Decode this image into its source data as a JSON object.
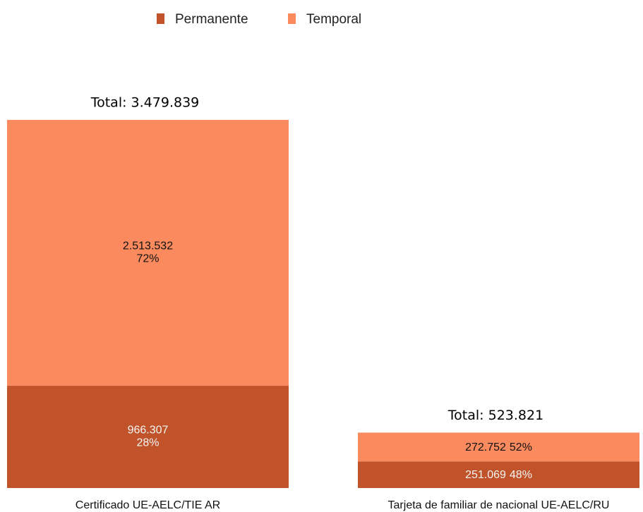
{
  "chart_data": {
    "type": "stacked_bar",
    "categories": [
      "Certificado UE-AELC/TIE AR",
      "Tarjeta de familiar de nacional UE-AELC/RU"
    ],
    "series": [
      {
        "name": "Permanente",
        "color": "#c0532a",
        "values": [
          966307,
          251069
        ],
        "value_labels": [
          "966.307",
          "251.069"
        ],
        "percentages": [
          28,
          48
        ],
        "percentage_labels": [
          "28%",
          "48%"
        ]
      },
      {
        "name": "Temporal",
        "color": "#fb8b5e",
        "values": [
          2513532,
          272752
        ],
        "value_labels": [
          "2.513.532",
          "272.752"
        ],
        "percentages": [
          72,
          52
        ],
        "percentage_labels": [
          "72%",
          "52%"
        ]
      }
    ],
    "totals": [
      3479839,
      523821
    ],
    "total_labels": [
      "Total: 3.479.839",
      "Total: 523.821"
    ],
    "legend": "top"
  }
}
